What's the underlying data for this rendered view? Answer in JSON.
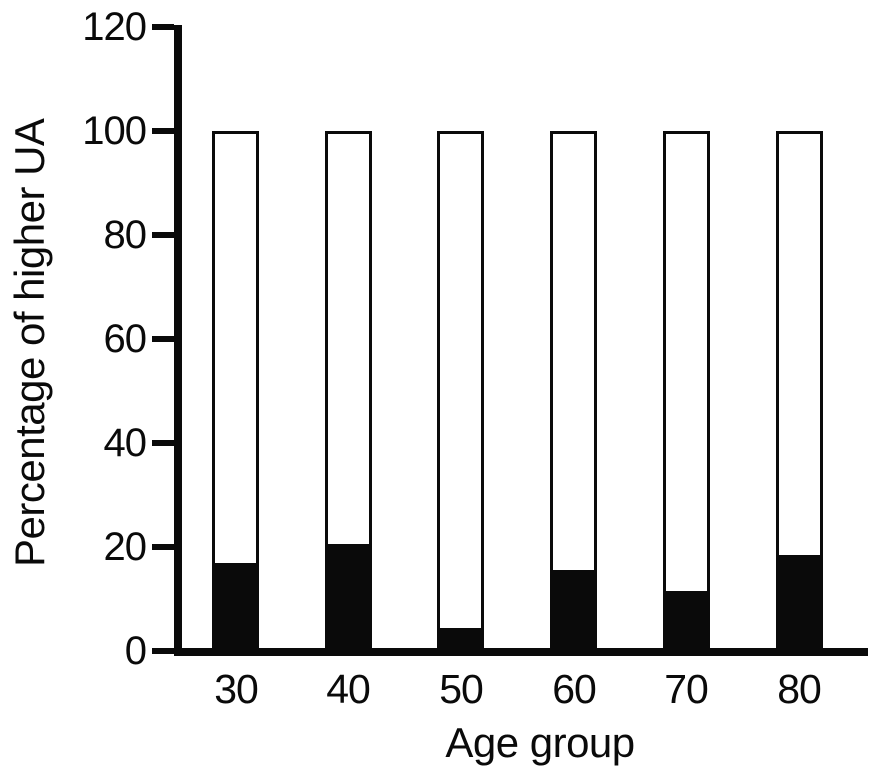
{
  "figure": {
    "background_color": "#ffffff",
    "ink_color": "#0a0a0a"
  },
  "chart_data": {
    "type": "bar",
    "subtype": "stacked",
    "title": "",
    "xlabel": "Age group",
    "ylabel": "Percentage of higher UA",
    "categories": [
      "30",
      "40",
      "50",
      "60",
      "70",
      "80"
    ],
    "series": [
      {
        "name": "black-segment",
        "color": "#0a0a0a",
        "values": [
          17,
          20.5,
          4.5,
          15.5,
          11.5,
          18.5
        ]
      },
      {
        "name": "white-segment",
        "color": "#ffffff",
        "values": [
          83,
          79.5,
          95.5,
          84.5,
          88.5,
          81.5
        ]
      }
    ],
    "stack_total": 100,
    "ylim": [
      0,
      120
    ],
    "yticks": [
      0,
      20,
      40,
      60,
      80,
      100,
      120
    ],
    "grid": false,
    "legend": "none",
    "bar_outline": "black",
    "bar_fill_bottom": "black",
    "bar_fill_top": "white"
  }
}
